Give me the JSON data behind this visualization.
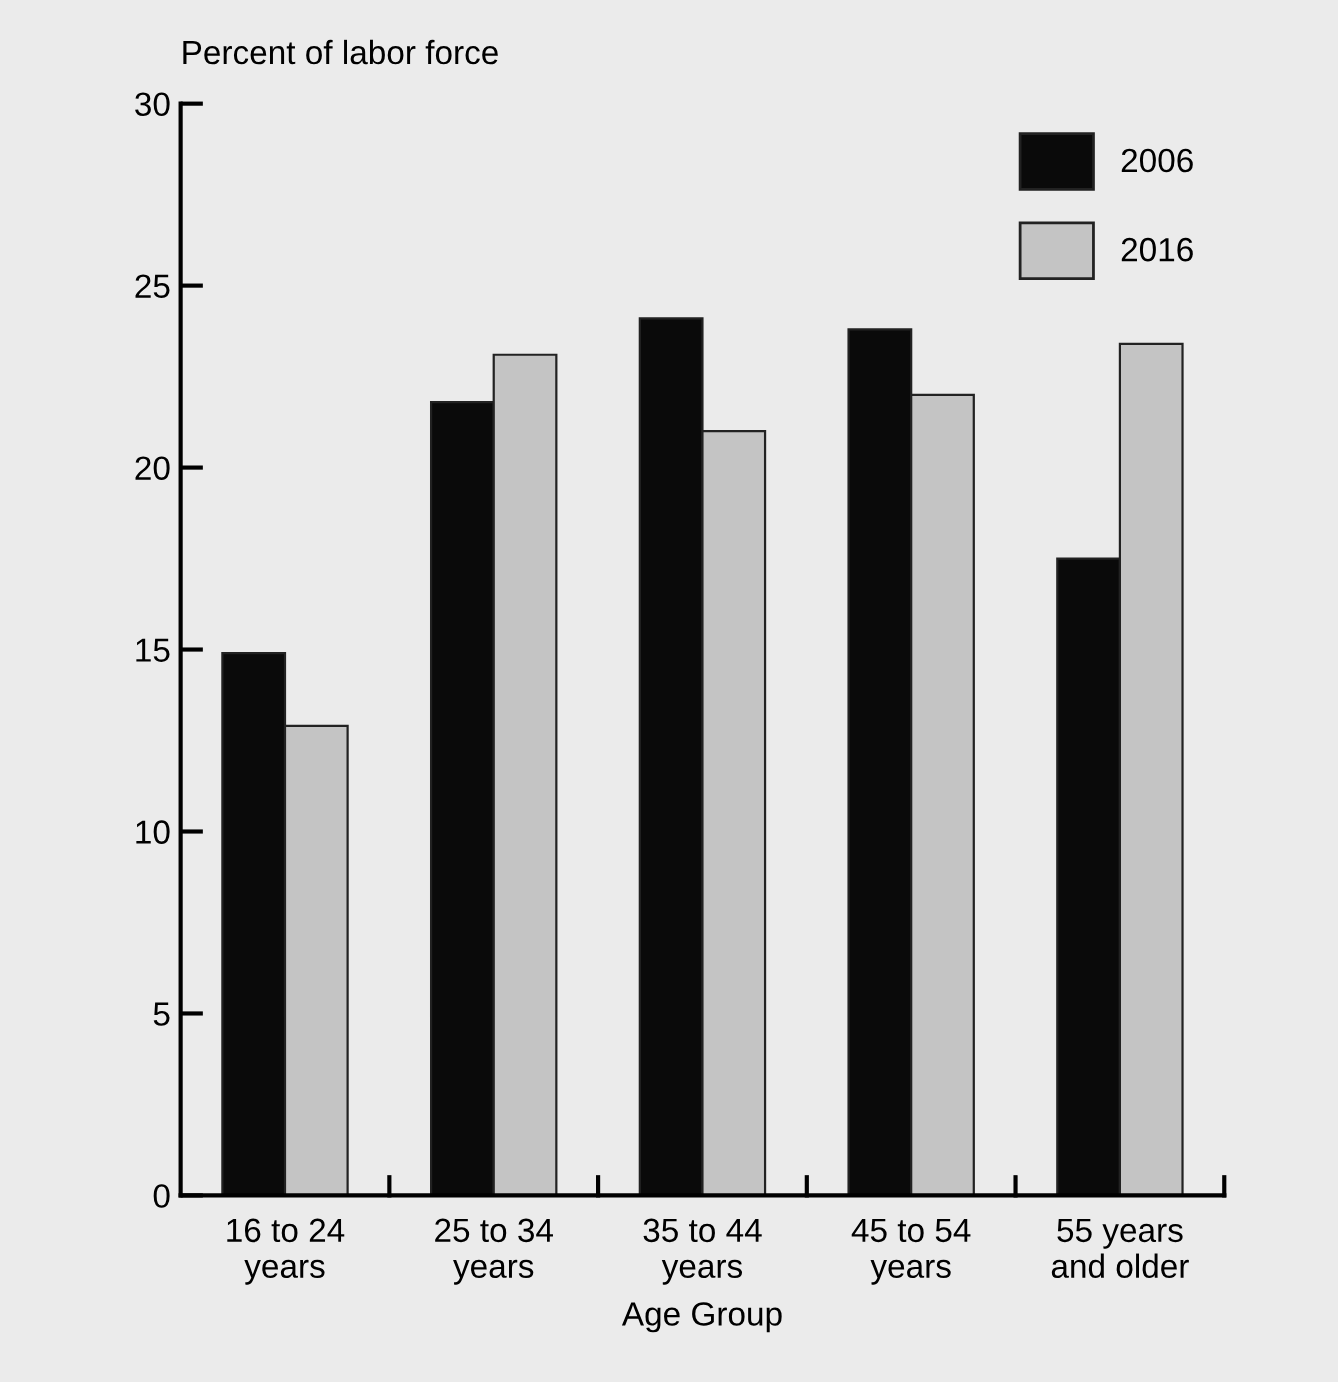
{
  "chart_data": {
    "type": "bar",
    "ylabel": "Percent of labor force",
    "xlabel": "Age Group",
    "categories": [
      "16 to 24\nyears",
      "25 to 34\nyears",
      "35 to 44\nyears",
      "45 to 54\nyears",
      "55 years\nand older"
    ],
    "series": [
      {
        "name": "2006",
        "color": "#0a0a0a",
        "values": [
          14.9,
          21.8,
          24.1,
          23.8,
          17.5
        ]
      },
      {
        "name": "2016",
        "color": "#c4c4c4",
        "values": [
          12.9,
          23.1,
          21.0,
          22.0,
          23.4
        ]
      }
    ],
    "ylim": [
      0,
      30
    ],
    "yticks": [
      0,
      5,
      10,
      15,
      20,
      25,
      30
    ],
    "grid": false,
    "legend": "top right"
  }
}
